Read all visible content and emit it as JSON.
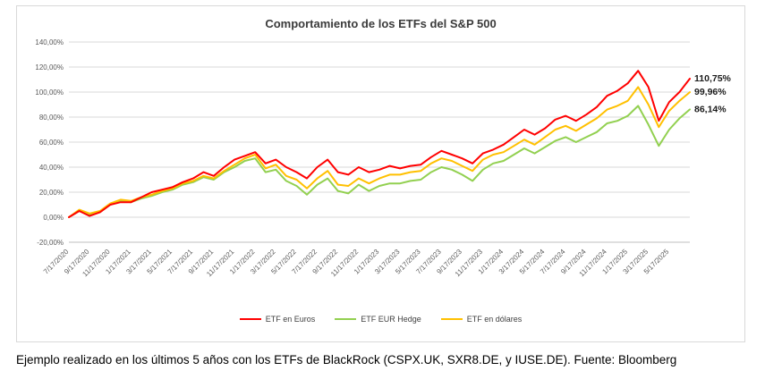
{
  "page": {
    "caption": "Ejemplo realizado en los últimos 5 años con los ETFs de BlackRock (CSPX.UK, SXR8.DE, y IUSE.DE). Fuente: Bloomberg"
  },
  "chart_data": {
    "type": "line",
    "title": "Comportamiento de los ETFs del S&P 500",
    "xlabel": "",
    "ylabel": "",
    "ylim": [
      -20,
      140
    ],
    "ytick_step": 20,
    "y_format": "percent_comma_2dp",
    "grid": true,
    "legend_position": "bottom",
    "months_per_tick": 2,
    "x_tick_labels": [
      "7/17/2020",
      "9/17/2020",
      "11/17/2020",
      "1/17/2021",
      "3/17/2021",
      "5/17/2021",
      "7/17/2021",
      "9/17/2021",
      "11/17/2021",
      "1/17/2022",
      "3/17/2022",
      "5/17/2022",
      "7/17/2022",
      "9/17/2022",
      "11/17/2022",
      "1/17/2023",
      "3/17/2023",
      "5/17/2023",
      "7/17/2023",
      "9/17/2023",
      "11/17/2023",
      "1/17/2024",
      "3/17/2024",
      "5/17/2024",
      "7/17/2024",
      "9/17/2024",
      "11/17/2024",
      "1/17/2025",
      "3/17/2025",
      "5/17/2025"
    ],
    "series": [
      {
        "name": "ETF en Euros",
        "color": "#ff0000",
        "end_label": "110,75%",
        "values": [
          0,
          5,
          1,
          4,
          10,
          12,
          12,
          16,
          20,
          22,
          24,
          28,
          31,
          36,
          33,
          40,
          46,
          49,
          52,
          43,
          46,
          40,
          36,
          31,
          40,
          46,
          36,
          34,
          40,
          36,
          38,
          41,
          39,
          41,
          42,
          48,
          53,
          50,
          47,
          43,
          51,
          54,
          58,
          64,
          70,
          66,
          71,
          78,
          81,
          77,
          82,
          88,
          97,
          101,
          107,
          117,
          104,
          77,
          92,
          100,
          110.75
        ]
      },
      {
        "name": "ETF EUR Hedge",
        "color": "#92d050",
        "end_label": "86,14%",
        "values": [
          0,
          5,
          2,
          4,
          10,
          13,
          12,
          15,
          17,
          20,
          22,
          26,
          28,
          32,
          30,
          36,
          40,
          45,
          47,
          36,
          38,
          29,
          25,
          18,
          26,
          31,
          21,
          19,
          26,
          21,
          25,
          27,
          27,
          29,
          30,
          36,
          40,
          38,
          34,
          29,
          38,
          43,
          45,
          50,
          55,
          51,
          56,
          61,
          64,
          60,
          64,
          68,
          75,
          77,
          81,
          89,
          74,
          57,
          70,
          79,
          86.14
        ]
      },
      {
        "name": "ETF en dólares",
        "color": "#ffc000",
        "end_label": "99,96%",
        "values": [
          0,
          6,
          3,
          5,
          11,
          14,
          13,
          16,
          18,
          21,
          23,
          27,
          29,
          33,
          31,
          37,
          42,
          47,
          50,
          39,
          42,
          33,
          30,
          23,
          31,
          37,
          26,
          25,
          31,
          27,
          31,
          34,
          34,
          36,
          37,
          43,
          47,
          45,
          41,
          37,
          46,
          50,
          52,
          57,
          62,
          58,
          64,
          70,
          73,
          69,
          74,
          79,
          86,
          89,
          93,
          104,
          90,
          72,
          85,
          93,
          99.96
        ]
      }
    ]
  }
}
